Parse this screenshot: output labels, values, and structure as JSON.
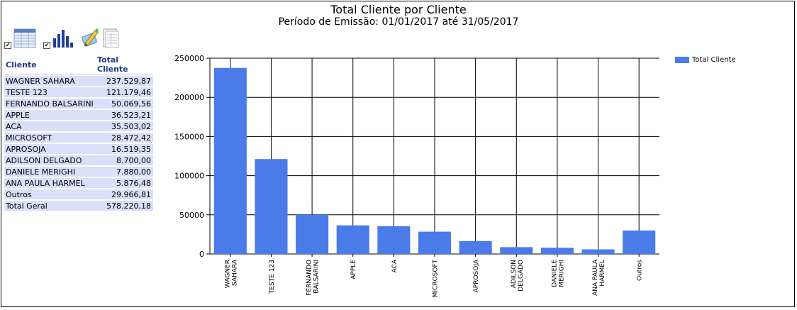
{
  "header": {
    "title": "Total Cliente por Cliente",
    "subtitle": "Período de Emissão: 01/01/2017 até 31/05/2017"
  },
  "toolbar": {
    "items": [
      {
        "icon": "grid-table-icon",
        "checked": true
      },
      {
        "icon": "bar-chart-icon",
        "checked": true
      },
      {
        "icon": "edit-pen-icon"
      },
      {
        "icon": "report-sheet-icon"
      }
    ]
  },
  "table": {
    "headers": [
      "Cliente",
      "Total Cliente"
    ],
    "rows": [
      {
        "name": "WAGNER SAHARA",
        "value": "237.529,87"
      },
      {
        "name": "TESTE 123",
        "value": "121.179,46"
      },
      {
        "name": "FERNANDO BALSARINI",
        "value": "50.069,56"
      },
      {
        "name": "APPLE",
        "value": "36.523,21"
      },
      {
        "name": "ACA",
        "value": "35.503,02"
      },
      {
        "name": "MICROSOFT",
        "value": "28.472,42"
      },
      {
        "name": "APROSOJA",
        "value": "16.519,35"
      },
      {
        "name": "ADILSON DELGADO",
        "value": "8.700,00"
      },
      {
        "name": "DANIELE MERIGHI",
        "value": "7.880,00"
      },
      {
        "name": "ANA PAULA HARMEL",
        "value": "5.876,48"
      },
      {
        "name": "Outros",
        "value": "29.966,81"
      },
      {
        "name": "Total Geral",
        "value": "578.220,18"
      }
    ]
  },
  "chart_data": {
    "type": "bar",
    "categories": [
      [
        "WAGNER",
        "SAHARA"
      ],
      [
        "TESTE 123"
      ],
      [
        "FERNANDO",
        "BALSARINI"
      ],
      [
        "APPLE"
      ],
      [
        "ACA"
      ],
      [
        "MICROSOFT"
      ],
      [
        "APROSOJA"
      ],
      [
        "ADILSON",
        "DELGADO"
      ],
      [
        "DANIELE",
        "MERIGHI"
      ],
      [
        "ANA PAULA",
        "HARMEL"
      ],
      [
        "Outros"
      ]
    ],
    "series": [
      {
        "name": "Total Cliente",
        "values": [
          237529.87,
          121179.46,
          50069.56,
          36523.21,
          35503.02,
          28472.42,
          16519.35,
          8700.0,
          7880.0,
          5876.48,
          29966.81
        ],
        "color": "#4b7be8"
      }
    ],
    "yticks": [
      0,
      50000,
      100000,
      150000,
      200000,
      250000
    ],
    "ylim": [
      0,
      250000
    ],
    "grid": true,
    "legend_position": "top-right"
  }
}
